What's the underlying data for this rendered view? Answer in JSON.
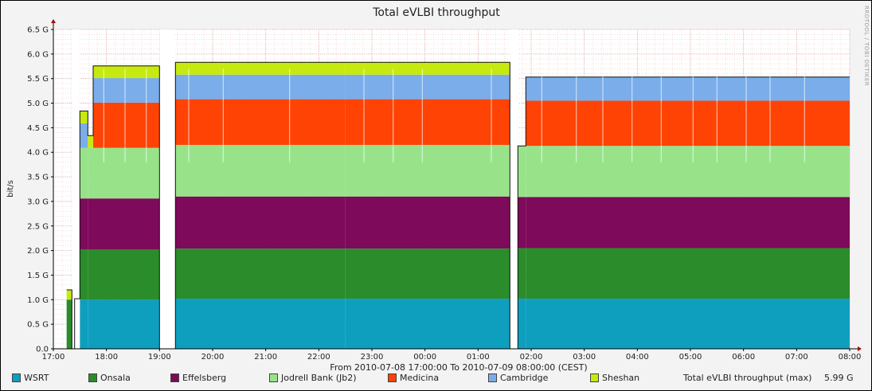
{
  "chart_data": {
    "type": "area",
    "title": "Total eVLBI throughput",
    "ylabel": "bit/s",
    "xlabel": "From 2010-07-08 17:00:00 To 2010-07-09 08:00:00 (CEST)",
    "xlim": [
      "17:00",
      "08:00"
    ],
    "ylim": [
      0,
      6.5
    ],
    "y_ticks": [
      {
        "v": 0.0,
        "label": "0.0"
      },
      {
        "v": 0.5,
        "label": "0.5 G"
      },
      {
        "v": 1.0,
        "label": "1.0 G"
      },
      {
        "v": 1.5,
        "label": "1.5 G"
      },
      {
        "v": 2.0,
        "label": "2.0 G"
      },
      {
        "v": 2.5,
        "label": "2.5 G"
      },
      {
        "v": 3.0,
        "label": "3.0 G"
      },
      {
        "v": 3.5,
        "label": "3.5 G"
      },
      {
        "v": 4.0,
        "label": "4.0 G"
      },
      {
        "v": 4.5,
        "label": "4.5 G"
      },
      {
        "v": 5.0,
        "label": "5.0 G"
      },
      {
        "v": 5.5,
        "label": "5.5 G"
      },
      {
        "v": 6.0,
        "label": "6.0 G"
      },
      {
        "v": 6.5,
        "label": "6.5 G"
      }
    ],
    "x_ticks": [
      "17:00",
      "18:00",
      "19:00",
      "20:00",
      "21:00",
      "22:00",
      "23:00",
      "00:00",
      "01:00",
      "02:00",
      "03:00",
      "04:00",
      "05:00",
      "06:00",
      "07:00",
      "08:00"
    ],
    "grid": true,
    "stacked": true,
    "series": [
      {
        "name": "WSRT",
        "color": "#0e9fbf",
        "segments": [
          [
            17.25,
            17.35,
            0.0
          ],
          [
            17.5,
            19.0,
            1.0
          ],
          [
            19.3,
            22.5,
            1.02
          ],
          [
            22.5,
            1.6,
            1.02
          ],
          [
            1.75,
            8.0,
            1.02
          ]
        ]
      },
      {
        "name": "Onsala",
        "color": "#2a8c2a",
        "segments": [
          [
            17.25,
            17.35,
            1.0
          ],
          [
            17.4,
            19.0,
            1.02
          ],
          [
            19.3,
            1.6,
            1.02
          ],
          [
            1.75,
            8.0,
            1.03
          ]
        ]
      },
      {
        "name": "Effelsberg",
        "color": "#7d0a5a",
        "segments": [
          [
            17.5,
            19.0,
            1.04
          ],
          [
            19.3,
            1.6,
            1.06
          ],
          [
            1.75,
            8.0,
            1.04
          ]
        ]
      },
      {
        "name": "Jodrell Bank (Jb2)",
        "color": "#98e38a",
        "segments": [
          [
            17.5,
            19.0,
            1.03
          ],
          [
            19.3,
            1.6,
            1.05
          ],
          [
            1.75,
            8.0,
            1.04
          ]
        ]
      },
      {
        "name": "Medicina",
        "color": "#ff4305",
        "segments": [
          [
            17.75,
            19.0,
            0.92
          ],
          [
            19.3,
            1.6,
            0.93
          ],
          [
            1.9,
            8.0,
            0.92
          ]
        ]
      },
      {
        "name": "Cambridge",
        "color": "#7aadea",
        "segments": [
          [
            17.5,
            17.65,
            0.5
          ],
          [
            17.75,
            19.0,
            0.5
          ],
          [
            19.3,
            1.6,
            0.5
          ],
          [
            1.9,
            8.0,
            0.48
          ]
        ]
      },
      {
        "name": "Sheshan",
        "color": "#c6ea0f",
        "segments": [
          [
            17.25,
            17.35,
            0.2
          ],
          [
            17.5,
            19.0,
            0.25
          ],
          [
            19.3,
            1.6,
            0.25
          ]
        ]
      }
    ],
    "total_label": "Total eVLBI throughput (max)",
    "total_value": "5.99 G"
  },
  "side_credit": "RRDTOOL / TOBI OETIKER"
}
